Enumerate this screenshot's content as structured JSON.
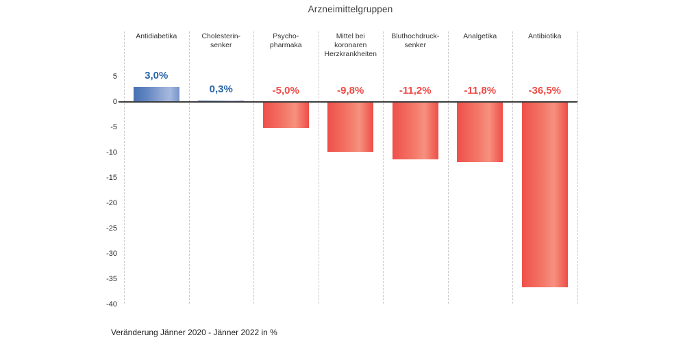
{
  "title": "Arzneimittelgruppen",
  "caption": "Veränderung Jänner 2020 - Jänner 2022 in %",
  "colors": {
    "positive_value_text": "#2b66a9",
    "negative_value_text": "#ee4a45",
    "blue_bar_dark": "#4670b2",
    "blue_bar_light": "#a4b8df",
    "red_bar_dark": "#ee4d47",
    "red_bar_light": "#f6917f",
    "axis_line": "#3c3c3c",
    "divider": "#c9c9c9",
    "label_text": "#333333"
  },
  "chart_data": {
    "type": "bar",
    "title": "Arzneimittelgruppen",
    "categories": [
      "Antidiabetika",
      "Cholesterinsenker",
      "Psychopharmaka",
      "Mittel bei koronaren Herzkrankheiten",
      "Bluthochdrucksenker",
      "Analgetika",
      "Antibiotika"
    ],
    "category_display_lines": [
      [
        "Antidiabetika"
      ],
      [
        "Cholesterin-",
        "senker"
      ],
      [
        "Psycho-",
        "pharmaka"
      ],
      [
        "Mittel bei",
        "koronaren",
        "Herzkrankheiten"
      ],
      [
        "Bluthochdruck-",
        "senker"
      ],
      [
        "Analgetika"
      ],
      [
        "Antibiotika"
      ]
    ],
    "values": [
      3.0,
      0.3,
      -5.0,
      -9.8,
      -11.2,
      -11.8,
      -36.5
    ],
    "value_labels": [
      "3,0%",
      "0,3%",
      "-5,0%",
      "-9,8%",
      "-11,2%",
      "-11,8%",
      "-36,5%"
    ],
    "y_ticks": [
      5,
      0,
      -5,
      -10,
      -15,
      -20,
      -25,
      -30,
      -35,
      -40
    ],
    "ylim": [
      -40,
      5
    ],
    "xlabel": "",
    "ylabel": "",
    "caption": "Veränderung Jänner 2020 - Jänner 2022 in %",
    "grid": false,
    "legend_position": "none",
    "unit": "%"
  }
}
